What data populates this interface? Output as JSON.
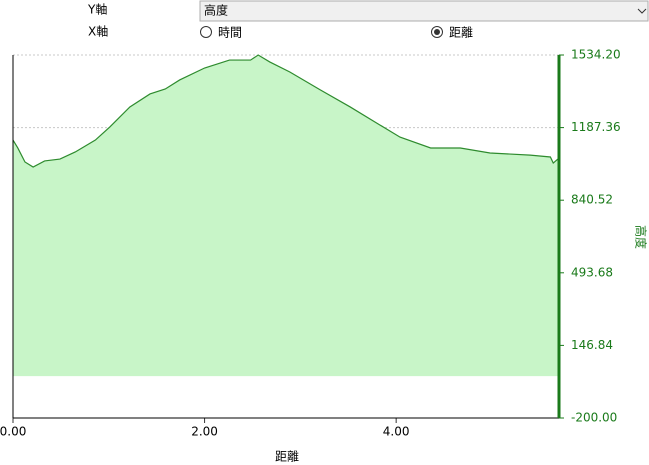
{
  "controls": {
    "y_axis_label": "Y軸",
    "y_axis_value": "高度",
    "x_axis_label": "X軸",
    "options": [
      {
        "label": "時間",
        "selected": false
      },
      {
        "label": "距離",
        "selected": true
      }
    ]
  },
  "chart_data": {
    "type": "area",
    "xlabel": "距離",
    "ylabel": "高度",
    "x": [
      0,
      0.05,
      0.125,
      0.21,
      0.33,
      0.49,
      0.65,
      0.86,
      1.01,
      1.22,
      1.43,
      1.59,
      1.74,
      2.0,
      2.26,
      2.48,
      2.56,
      2.68,
      2.89,
      3.21,
      3.52,
      3.83,
      4.04,
      4.36,
      4.67,
      4.98,
      5.4,
      5.61,
      5.64,
      5.7
    ],
    "values": [
      1128,
      1090,
      1023,
      999,
      1028,
      1037,
      1071,
      1128,
      1190,
      1286,
      1348,
      1372,
      1415,
      1472,
      1510,
      1510,
      1534,
      1501,
      1453,
      1367,
      1286,
      1200,
      1142,
      1090,
      1090,
      1066,
      1056,
      1047,
      1018,
      1042
    ],
    "xlim": [
      0,
      5.7
    ],
    "ylim": [
      -200,
      1534.2
    ],
    "xticks": [
      {
        "value": 0,
        "label": "0.00"
      },
      {
        "value": 2,
        "label": "2.00"
      },
      {
        "value": 4,
        "label": "4.00"
      }
    ],
    "yticks": [
      {
        "value": -200,
        "label": "-200.00"
      },
      {
        "value": 146.84,
        "label": "146.84"
      },
      {
        "value": 493.68,
        "label": "493.68"
      },
      {
        "value": 840.52,
        "label": "840.52"
      },
      {
        "value": 1187.36,
        "label": "1187.36"
      },
      {
        "value": 1534.2,
        "label": "1534.20"
      }
    ],
    "color": "#2e8b2e",
    "fill_color": "#c8f5c8",
    "axis_color": "#1a7a1a",
    "grid": true
  }
}
